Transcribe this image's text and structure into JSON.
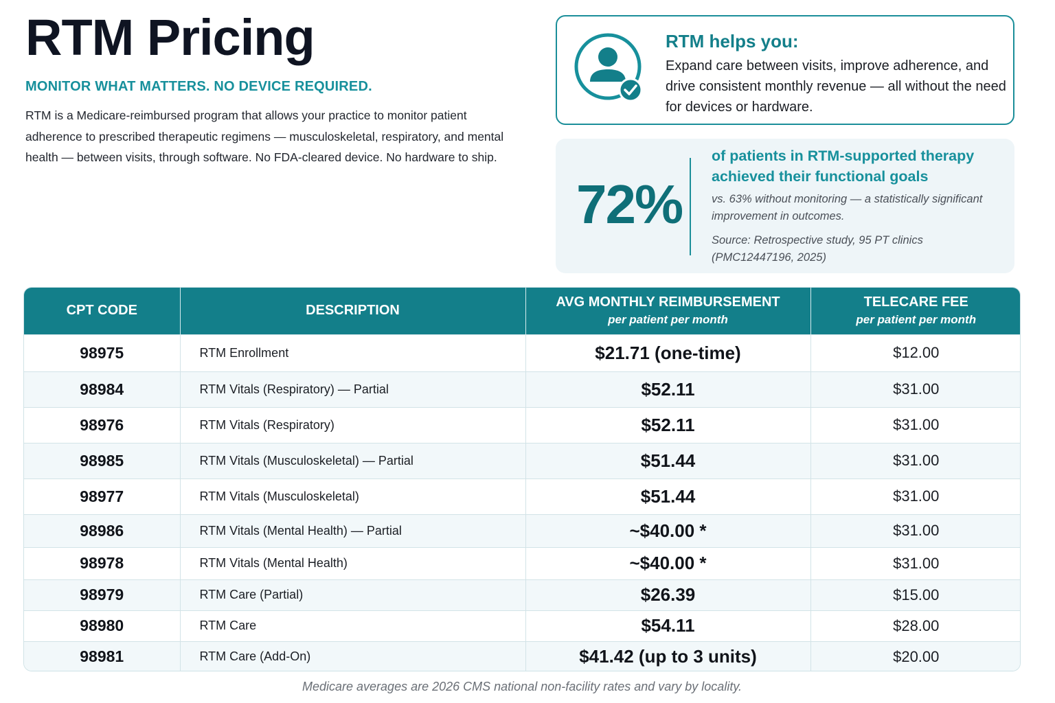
{
  "header": {
    "title": "RTM Pricing",
    "subtitle": "MONITOR WHAT MATTERS. NO DEVICE REQUIRED.",
    "intro": "RTM is a Medicare-reimbursed program that allows your practice to monitor patient adherence to prescribed therapeutic regimens — musculoskeletal, respiratory, and mental health — between visits, through software. No FDA-cleared device. No hardware to ship."
  },
  "help_card": {
    "icon": "user-check-icon",
    "title": "RTM helps you:",
    "text": "Expand care between visits, improve adherence, and drive consistent monthly revenue — all without the need for devices or hardware."
  },
  "stat_card": {
    "value": "72%",
    "headline": "of patients in RTM-supported therapy achieved their functional goals",
    "note": "vs. 63% without monitoring — a statistically significant improvement in outcomes.",
    "source": "Source: Retrospective study, 95 PT clinics (PMC12447196, 2025)"
  },
  "table": {
    "headers": {
      "code": "CPT CODE",
      "description": "DESCRIPTION",
      "avg": "AVG MONTHLY REIMBURSEMENT",
      "avg_sub": "per patient per month",
      "fee": "TELECARE FEE",
      "fee_sub": "per patient per month"
    },
    "rows": [
      {
        "code": "98975",
        "description": "RTM Enrollment",
        "avg": "$21.71 (one-time)",
        "fee": "$12.00"
      },
      {
        "code": "98984",
        "description": "RTM Vitals (Respiratory) — Partial",
        "avg": "$52.11",
        "fee": "$31.00"
      },
      {
        "code": "98976",
        "description": "RTM Vitals (Respiratory)",
        "avg": "$52.11",
        "fee": "$31.00"
      },
      {
        "code": "98985",
        "description": "RTM Vitals (Musculoskeletal) — Partial",
        "avg": "$51.44",
        "fee": "$31.00"
      },
      {
        "code": "98977",
        "description": "RTM Vitals (Musculoskeletal)",
        "avg": "$51.44",
        "fee": "$31.00"
      },
      {
        "code": "98986",
        "description": "RTM Vitals (Mental Health) — Partial",
        "avg": "~$40.00 *",
        "fee": "$31.00"
      },
      {
        "code": "98978",
        "description": "RTM Vitals (Mental Health)",
        "avg": "~$40.00 *",
        "fee": "$31.00"
      },
      {
        "code": "98979",
        "description": "RTM Care (Partial)",
        "avg": "$26.39",
        "fee": "$15.00"
      },
      {
        "code": "98980",
        "description": "RTM Care",
        "avg": "$54.11",
        "fee": "$28.00"
      },
      {
        "code": "98981",
        "description": "RTM Care (Add-On)",
        "avg": "$41.42 (up to 3 units)",
        "fee": "$20.00"
      }
    ]
  },
  "footnote": "Medicare averages are 2026 CMS national non-facility rates and vary by locality.",
  "colors": {
    "accent": "#137f8a",
    "accent_light": "#17909c",
    "stat_bg": "#eef5f8"
  }
}
